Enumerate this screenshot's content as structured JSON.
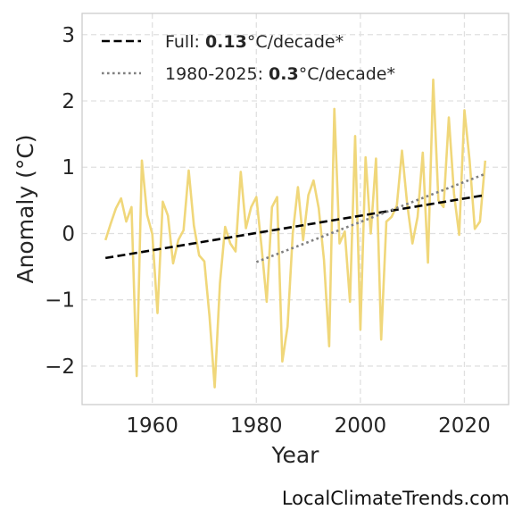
{
  "chart_data": {
    "type": "line",
    "title": "",
    "xlabel": "Year",
    "ylabel": "Anomaly (°C)",
    "xlim": [
      1946.5,
      2028.5
    ],
    "ylim": [
      -2.58,
      3.32
    ],
    "xticks": [
      1960,
      1980,
      2000,
      2020
    ],
    "yticks": [
      -2,
      -1,
      0,
      1,
      2,
      3
    ],
    "ytick_labels": [
      "−2",
      "−1",
      "0",
      "1",
      "2",
      "3"
    ],
    "grid": true,
    "legend_position": "top-left",
    "series": [
      {
        "color": "#f0d77a",
        "x": [
          1951,
          1952,
          1953,
          1954,
          1955,
          1956,
          1957,
          1958,
          1959,
          1960,
          1961,
          1962,
          1963,
          1964,
          1965,
          1966,
          1967,
          1968,
          1969,
          1970,
          1971,
          1972,
          1973,
          1974,
          1975,
          1976,
          1977,
          1978,
          1979,
          1980,
          1981,
          1982,
          1983,
          1984,
          1985,
          1986,
          1987,
          1988,
          1989,
          1990,
          1991,
          1992,
          1993,
          1994,
          1995,
          1996,
          1997,
          1998,
          1999,
          2000,
          2001,
          2002,
          2003,
          2004,
          2005,
          2006,
          2007,
          2008,
          2009,
          2010,
          2011,
          2012,
          2013,
          2014,
          2015,
          2016,
          2017,
          2018,
          2019,
          2020,
          2021,
          2022,
          2023,
          2024
        ],
        "y": [
          -0.1,
          0.15,
          0.38,
          0.53,
          0.18,
          0.4,
          -2.15,
          1.1,
          0.28,
          -0.01,
          -1.2,
          0.48,
          0.27,
          -0.45,
          -0.1,
          0.05,
          0.95,
          0.12,
          -0.33,
          -0.42,
          -1.25,
          -2.32,
          -0.75,
          0.1,
          -0.15,
          -0.27,
          0.93,
          0.08,
          0.4,
          0.55,
          -0.2,
          -1.03,
          0.4,
          0.55,
          -1.93,
          -1.4,
          0.0,
          0.7,
          -0.1,
          0.58,
          0.8,
          0.38,
          -0.4,
          -1.7,
          1.88,
          -0.15,
          0.03,
          -1.03,
          1.47,
          -1.45,
          1.15,
          0.0,
          1.13,
          -1.6,
          0.18,
          0.25,
          0.42,
          1.25,
          0.45,
          -0.15,
          0.25,
          1.22,
          -0.44,
          2.32,
          0.5,
          0.4,
          1.75,
          0.6,
          -0.02,
          1.86,
          1.1,
          0.07,
          0.18,
          1.1
        ]
      },
      {
        "name": "Full",
        "trend_value": "0.13",
        "unit": "°C/decade*",
        "color": "#000000",
        "style": "dashed",
        "x": [
          1951,
          2024
        ],
        "y": [
          -0.37,
          0.58
        ]
      },
      {
        "name": "1980-2025",
        "trend_value": "0.3",
        "unit": "°C/decade*",
        "color": "#808080",
        "style": "dotted",
        "x": [
          1980,
          2024
        ],
        "y": [
          -0.43,
          0.9
        ]
      }
    ]
  },
  "footer": {
    "credit": "LocalClimateTrends.com"
  }
}
